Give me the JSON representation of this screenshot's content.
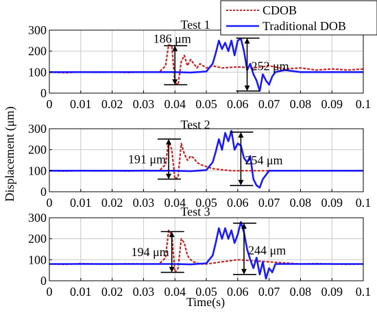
{
  "chart_data": {
    "type": "line",
    "xlabel": "Time(s)",
    "ylabel": "Displacement (μm)",
    "legend": {
      "placement": "top-right",
      "entries": [
        "CDOB",
        "Traditional DOB"
      ]
    },
    "colors": {
      "CDOB": "#cc2222",
      "Traditional DOB": "#1a1aff"
    },
    "x_ticks": [
      0,
      0.01,
      0.02,
      0.03,
      0.04,
      0.05,
      0.06,
      0.07,
      0.08,
      0.09,
      0.1
    ],
    "x_tick_labels": [
      "0",
      "0.01",
      "0.02",
      "0.03",
      "0.04",
      "0.05",
      "0.06",
      "0.07",
      "0.08",
      "0.09",
      "0.1"
    ],
    "panels": [
      {
        "title": "Test 1",
        "xlim": [
          0,
          0.1
        ],
        "ylim": [
          0,
          300
        ],
        "y_ticks": [
          0,
          100,
          200,
          300
        ],
        "grid": true,
        "series": [
          {
            "name": "CDOB",
            "style": "dashed",
            "x": [
              0,
              0.005,
              0.01,
              0.015,
              0.02,
              0.025,
              0.03,
              0.035,
              0.037,
              0.038,
              0.039,
              0.04,
              0.041,
              0.042,
              0.043,
              0.044,
              0.045,
              0.046,
              0.047,
              0.048,
              0.05,
              0.052,
              0.055,
              0.06,
              0.065,
              0.07,
              0.075,
              0.08,
              0.085,
              0.09,
              0.095,
              0.1
            ],
            "y": [
              100,
              97,
              101,
              99,
              100,
              98,
              101,
              100,
              130,
              230,
              225,
              50,
              40,
              150,
              180,
              130,
              160,
              140,
              120,
              140,
              120,
              130,
              120,
              125,
              120,
              130,
              115,
              120,
              110,
              115,
              110,
              115
            ]
          },
          {
            "name": "Traditional DOB",
            "style": "solid",
            "x": [
              0,
              0.01,
              0.02,
              0.03,
              0.04,
              0.045,
              0.05,
              0.052,
              0.053,
              0.054,
              0.055,
              0.056,
              0.057,
              0.058,
              0.059,
              0.06,
              0.061,
              0.062,
              0.063,
              0.064,
              0.065,
              0.066,
              0.067,
              0.068,
              0.069,
              0.07,
              0.071,
              0.072,
              0.075,
              0.08,
              0.085,
              0.09,
              0.095,
              0.1
            ],
            "y": [
              100,
              100,
              100,
              100,
              100,
              98,
              103,
              140,
              190,
              250,
              210,
              240,
              200,
              250,
              180,
              250,
              260,
              200,
              110,
              140,
              90,
              60,
              10,
              90,
              60,
              40,
              80,
              100,
              110,
              100,
              100,
              100,
              100,
              100
            ]
          }
        ],
        "annotations": [
          {
            "text": "186 μm",
            "x": 0.04,
            "y_low": 40,
            "y_high": 226
          },
          {
            "text": "252 μm",
            "x": 0.063,
            "y_low": 10,
            "y_high": 262
          }
        ]
      },
      {
        "title": "Test 2",
        "xlim": [
          0,
          0.1
        ],
        "ylim": [
          0,
          300
        ],
        "y_ticks": [
          0,
          100,
          200,
          300
        ],
        "grid": true,
        "series": [
          {
            "name": "CDOB",
            "style": "dashed",
            "x": [
              0,
              0.005,
              0.01,
              0.015,
              0.02,
              0.025,
              0.03,
              0.035,
              0.037,
              0.038,
              0.039,
              0.04,
              0.041,
              0.042,
              0.043,
              0.044,
              0.045,
              0.046,
              0.047,
              0.048,
              0.05,
              0.052,
              0.055,
              0.058,
              0.06,
              0.065,
              0.07,
              0.075,
              0.08,
              0.085,
              0.09,
              0.095,
              0.1
            ],
            "y": [
              100,
              98,
              101,
              99,
              100,
              98,
              102,
              100,
              130,
              240,
              200,
              60,
              70,
              230,
              180,
              150,
              170,
              160,
              140,
              130,
              120,
              110,
              105,
              100,
              100,
              100,
              100,
              100,
              100,
              100,
              100,
              100,
              100
            ]
          },
          {
            "name": "Traditional DOB",
            "style": "solid",
            "x": [
              0,
              0.01,
              0.02,
              0.03,
              0.04,
              0.045,
              0.05,
              0.052,
              0.053,
              0.054,
              0.055,
              0.056,
              0.057,
              0.058,
              0.059,
              0.06,
              0.061,
              0.062,
              0.063,
              0.064,
              0.065,
              0.066,
              0.067,
              0.068,
              0.07,
              0.075,
              0.08,
              0.085,
              0.09,
              0.095,
              0.1
            ],
            "y": [
              100,
              100,
              100,
              100,
              100,
              98,
              103,
              140,
              190,
              250,
              200,
              280,
              240,
              290,
              200,
              230,
              220,
              160,
              140,
              170,
              60,
              30,
              20,
              60,
              100,
              100,
              100,
              100,
              100,
              100,
              100
            ]
          }
        ],
        "annotations": [
          {
            "text": "191 μm",
            "x": 0.038,
            "y_low": 60,
            "y_high": 251
          },
          {
            "text": "254 μm",
            "x": 0.061,
            "y_low": 30,
            "y_high": 284
          }
        ]
      },
      {
        "title": "Test 3",
        "xlim": [
          0,
          0.1
        ],
        "ylim": [
          0,
          300
        ],
        "y_ticks": [
          0,
          100,
          200,
          300
        ],
        "grid": true,
        "series": [
          {
            "name": "CDOB",
            "style": "dashed",
            "x": [
              0,
              0.005,
              0.01,
              0.015,
              0.02,
              0.025,
              0.03,
              0.035,
              0.037,
              0.038,
              0.039,
              0.04,
              0.041,
              0.042,
              0.043,
              0.044,
              0.045,
              0.046,
              0.047,
              0.048,
              0.05,
              0.055,
              0.06,
              0.065,
              0.07,
              0.075,
              0.08,
              0.085,
              0.09,
              0.095,
              0.1
            ],
            "y": [
              80,
              78,
              82,
              80,
              79,
              81,
              80,
              80,
              110,
              240,
              220,
              40,
              60,
              200,
              180,
              120,
              100,
              90,
              85,
              80,
              80,
              90,
              100,
              95,
              90,
              85,
              80,
              82,
              80,
              78,
              80
            ]
          },
          {
            "name": "Traditional DOB",
            "style": "solid",
            "x": [
              0,
              0.01,
              0.02,
              0.03,
              0.04,
              0.045,
              0.05,
              0.052,
              0.053,
              0.054,
              0.055,
              0.056,
              0.057,
              0.058,
              0.059,
              0.06,
              0.061,
              0.062,
              0.063,
              0.064,
              0.065,
              0.066,
              0.067,
              0.068,
              0.069,
              0.07,
              0.071,
              0.072,
              0.075,
              0.08,
              0.085,
              0.09,
              0.095,
              0.1
            ],
            "y": [
              80,
              80,
              80,
              80,
              80,
              78,
              83,
              120,
              180,
              250,
              200,
              250,
              200,
              240,
              180,
              220,
              280,
              230,
              150,
              100,
              60,
              110,
              30,
              90,
              10,
              60,
              40,
              80,
              80,
              80,
              80,
              80,
              80,
              80
            ]
          }
        ],
        "annotations": [
          {
            "text": "194 μm",
            "x": 0.039,
            "y_low": 40,
            "y_high": 234
          },
          {
            "text": "244 μm",
            "x": 0.062,
            "y_low": 30,
            "y_high": 274
          }
        ]
      }
    ]
  }
}
